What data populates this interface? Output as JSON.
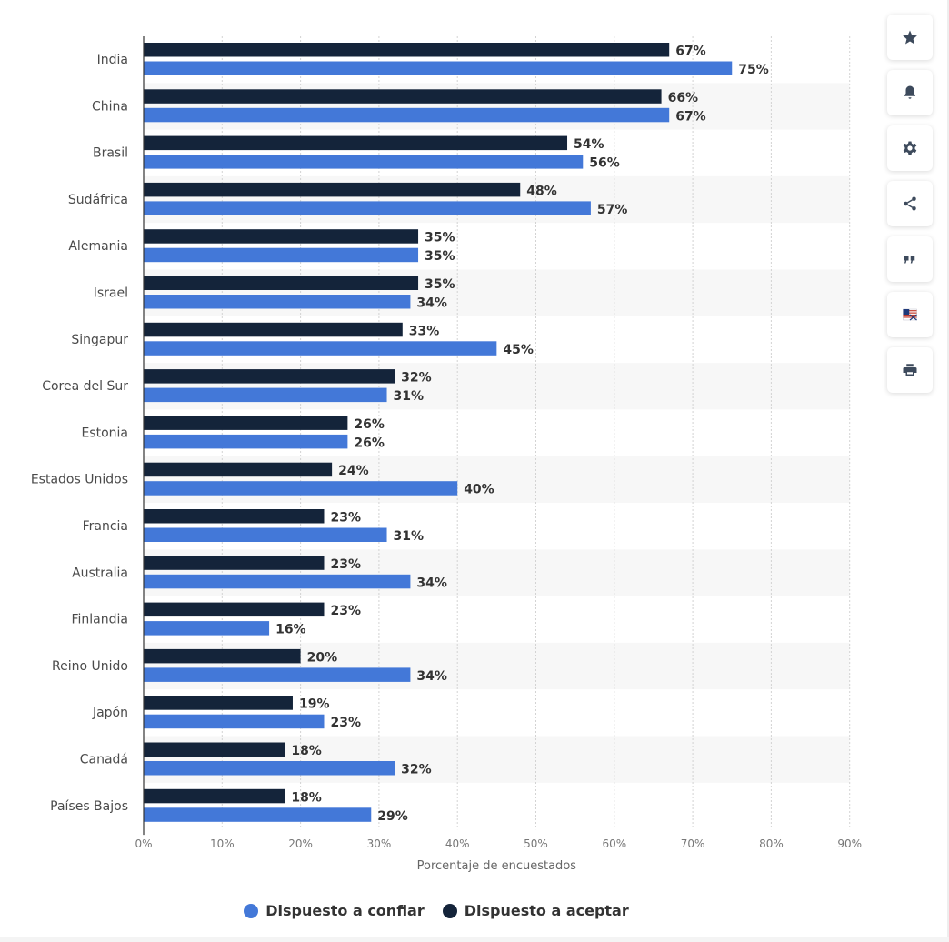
{
  "chart_data": {
    "type": "bar",
    "orientation": "horizontal",
    "categories": [
      "India",
      "China",
      "Brasil",
      "Sudáfrica",
      "Alemania",
      "Israel",
      "Singapur",
      "Corea del Sur",
      "Estonia",
      "Estados Unidos",
      "Francia",
      "Australia",
      "Finlandia",
      "Reino Unido",
      "Japón",
      "Canadá",
      "Países Bajos"
    ],
    "series": [
      {
        "name": "Dispuesto a aceptar",
        "color": "#14243a",
        "values": [
          67,
          66,
          54,
          48,
          35,
          35,
          33,
          32,
          26,
          24,
          23,
          23,
          23,
          20,
          19,
          18,
          18
        ]
      },
      {
        "name": "Dispuesto a confiar",
        "color": "#4378d8",
        "values": [
          75,
          67,
          56,
          57,
          35,
          34,
          45,
          31,
          26,
          40,
          31,
          34,
          16,
          34,
          23,
          32,
          29
        ]
      }
    ],
    "value_suffix": "%",
    "xlim": [
      0,
      90
    ],
    "xticks": [
      "0%",
      "10%",
      "20%",
      "30%",
      "40%",
      "50%",
      "60%",
      "70%",
      "80%",
      "90%"
    ],
    "xlabel": "Porcentaje de encuestados",
    "legend": [
      {
        "label": "Dispuesto a confiar",
        "color": "#4378d8"
      },
      {
        "label": "Dispuesto a aceptar",
        "color": "#14243a"
      }
    ],
    "legend_position": "bottom-center",
    "grid": true
  },
  "toolbar": [
    {
      "name": "favorite",
      "icon": "star-icon"
    },
    {
      "name": "notification",
      "icon": "bell-icon"
    },
    {
      "name": "settings",
      "icon": "gear-icon"
    },
    {
      "name": "share",
      "icon": "share-icon"
    },
    {
      "name": "cite",
      "icon": "quote-icon"
    },
    {
      "name": "language",
      "icon": "flag-icon"
    },
    {
      "name": "print",
      "icon": "printer-icon"
    }
  ]
}
